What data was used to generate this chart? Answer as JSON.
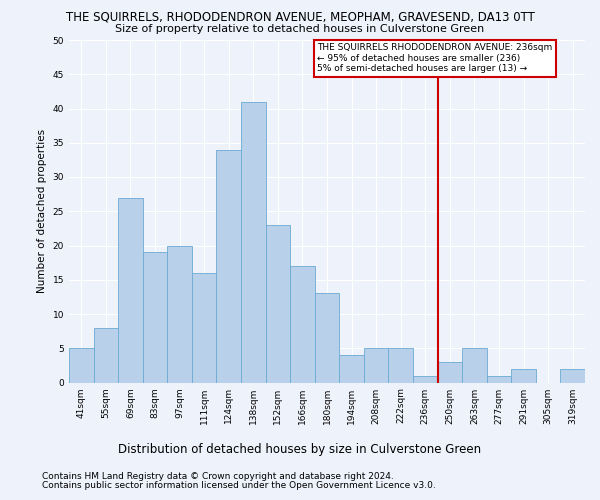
{
  "title": "THE SQUIRRELS, RHODODENDRON AVENUE, MEOPHAM, GRAVESEND, DA13 0TT",
  "subtitle": "Size of property relative to detached houses in Culverstone Green",
  "xlabel": "Distribution of detached houses by size in Culverstone Green",
  "ylabel": "Number of detached properties",
  "categories": [
    "41sqm",
    "55sqm",
    "69sqm",
    "83sqm",
    "97sqm",
    "111sqm",
    "124sqm",
    "138sqm",
    "152sqm",
    "166sqm",
    "180sqm",
    "194sqm",
    "208sqm",
    "222sqm",
    "236sqm",
    "250sqm",
    "263sqm",
    "277sqm",
    "291sqm",
    "305sqm",
    "319sqm"
  ],
  "values": [
    5,
    8,
    27,
    19,
    20,
    16,
    34,
    41,
    23,
    17,
    13,
    4,
    5,
    5,
    1,
    3,
    5,
    1,
    2,
    0,
    2
  ],
  "bar_color": "#b8d0ea",
  "bar_edge_color": "#6aaad4",
  "marker_index": 14,
  "marker_color": "#cc0000",
  "annotation_line1": "THE SQUIRRELS RHODODENDRON AVENUE: 236sqm",
  "annotation_line2": "← 95% of detached houses are smaller (236)",
  "annotation_line3": "5% of semi-detached houses are larger (13) →",
  "annotation_box_color": "#ffffff",
  "annotation_border_color": "#cc0000",
  "ylim": [
    0,
    50
  ],
  "yticks": [
    0,
    5,
    10,
    15,
    20,
    25,
    30,
    35,
    40,
    45,
    50
  ],
  "footer1": "Contains HM Land Registry data © Crown copyright and database right 2024.",
  "footer2": "Contains public sector information licensed under the Open Government Licence v3.0.",
  "bg_color": "#eef2fb",
  "grid_color": "#ffffff",
  "title_fontsize": 8.5,
  "subtitle_fontsize": 8.0,
  "xlabel_fontsize": 8.5,
  "ylabel_fontsize": 7.5,
  "tick_fontsize": 6.5,
  "annotation_fontsize": 6.5,
  "footer_fontsize": 6.5
}
